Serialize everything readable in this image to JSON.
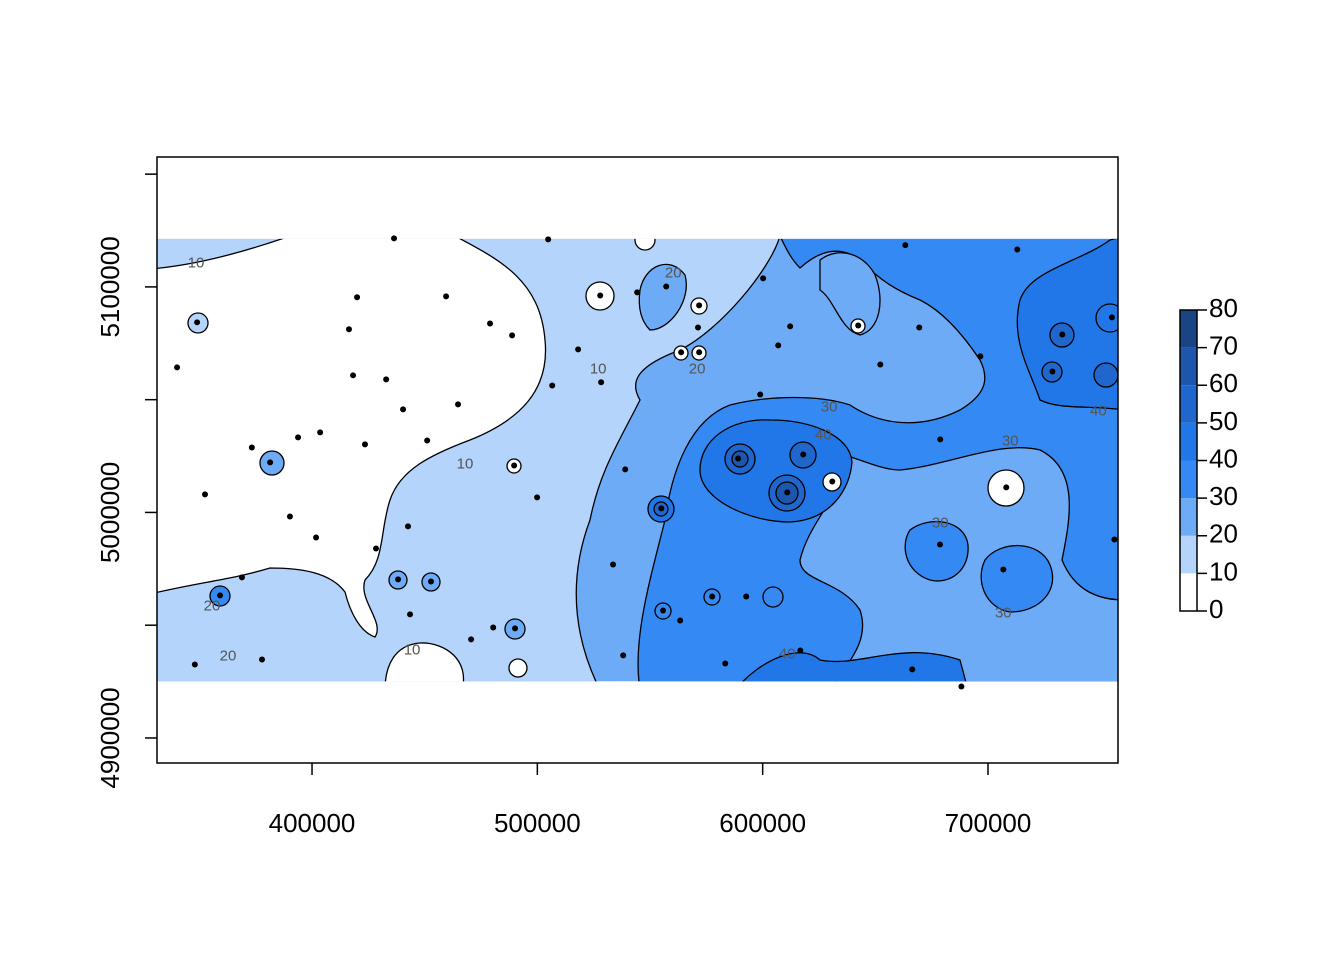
{
  "chart_data": {
    "type": "contour",
    "xlim": [
      331200,
      757700
    ],
    "ylim": [
      4888900,
      5157600
    ],
    "raster_ylim": [
      4925100,
      5121300
    ],
    "xticks": [
      400000,
      500000,
      600000,
      700000
    ],
    "yticks": [
      4900000,
      5000000,
      5100000
    ],
    "yminorticks": [
      4950000,
      5050000,
      5150000
    ],
    "levels": [
      0,
      10,
      20,
      30,
      40,
      50,
      60,
      70,
      80
    ],
    "level_colors": [
      "#ffffff",
      "#b4d4fb",
      "#6eabf6",
      "#3489f3",
      "#2277e8",
      "#1f67cd",
      "#1c57ad",
      "#1a4585"
    ],
    "contour_labels": [
      {
        "level": 10,
        "x": 348500,
        "y": 5110400
      },
      {
        "level": 10,
        "x": 467900,
        "y": 5021300
      },
      {
        "level": 10,
        "x": 527000,
        "y": 5063400
      },
      {
        "level": 10,
        "x": 444400,
        "y": 4938800
      },
      {
        "level": 20,
        "x": 560300,
        "y": 5106000
      },
      {
        "level": 20,
        "x": 570900,
        "y": 5063400
      },
      {
        "level": 20,
        "x": 362700,
        "y": 4936100
      },
      {
        "level": 20,
        "x": 355600,
        "y": 4958300
      },
      {
        "level": 30,
        "x": 629500,
        "y": 5046600
      },
      {
        "level": 30,
        "x": 709900,
        "y": 5031500
      },
      {
        "level": 30,
        "x": 678800,
        "y": 4995100
      },
      {
        "level": 30,
        "x": 706800,
        "y": 4955200
      },
      {
        "level": 40,
        "x": 626900,
        "y": 5034100
      },
      {
        "level": 40,
        "x": 749000,
        "y": 5044800
      },
      {
        "level": 40,
        "x": 610900,
        "y": 4937000
      }
    ],
    "points": {
      "x": [
        436400,
        349000,
        340100,
        381400,
        393800,
        359200,
        377800,
        348000,
        368900,
        373300,
        420000,
        416400,
        459500,
        479000,
        488800,
        432900,
        418200,
        440400,
        464800,
        451100,
        423500,
        403600,
        352500,
        390200,
        401800,
        428400,
        442600,
        438200,
        452800,
        470600,
        480400,
        490100,
        489700,
        504800,
        527900,
        544300,
        557200,
        571800,
        571300,
        563800,
        571800,
        528300,
        518100,
        506600,
        555000,
        533600,
        555800,
        577600,
        563400,
        589100,
        610900,
        618000,
        606900,
        600200,
        612200,
        592700,
        630900,
        642400,
        669500,
        696600,
        708100,
        706800,
        678700,
        733000,
        728600,
        756100,
        755000,
        688200,
        666400,
        616700,
        583400,
        538100,
        663300,
        713000,
        678800,
        539000,
        598900,
        652200,
        499900,
        443500
      ],
      "y": [
        5121500,
        5084300,
        5064300,
        5022200,
        5033300,
        4963200,
        4934800,
        4932600,
        4971200,
        5028800,
        5095400,
        5081200,
        5095800,
        5083800,
        5078500,
        5059000,
        5060800,
        5045700,
        5047900,
        5031900,
        5030200,
        5035500,
        5008000,
        4998200,
        4988900,
        4984000,
        4993800,
        4970300,
        4969400,
        4943700,
        4949000,
        4948600,
        5020800,
        5121100,
        5096200,
        5097600,
        5100200,
        5091800,
        5082000,
        5071000,
        5071000,
        5057700,
        5072300,
        5056300,
        5001800,
        4976900,
        4956500,
        4962700,
        4952100,
        5023900,
        5008900,
        5025700,
        5074100,
        5103800,
        5082500,
        4962700,
        5013700,
        5082900,
        5082000,
        5069200,
        5011100,
        4974700,
        4985800,
        5078900,
        5062500,
        4988000,
        5086500,
        4922800,
        4930400,
        4938800,
        4933000,
        4936600,
        5118500,
        5116600,
        5032400,
        5019100,
        5052300,
        5065600,
        5006700,
        4954800
      ]
    }
  }
}
